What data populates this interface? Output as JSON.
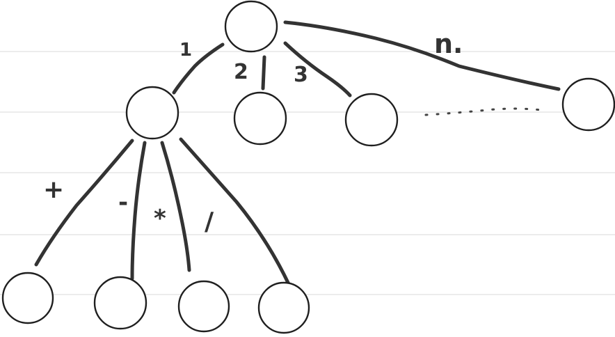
{
  "diagram": {
    "root_edge_labels": {
      "first": "1",
      "second": "2",
      "third": "3",
      "last": "n."
    },
    "child_edge_labels": {
      "plus": "+",
      "minus": "-",
      "times": "*",
      "divide": "/"
    }
  }
}
